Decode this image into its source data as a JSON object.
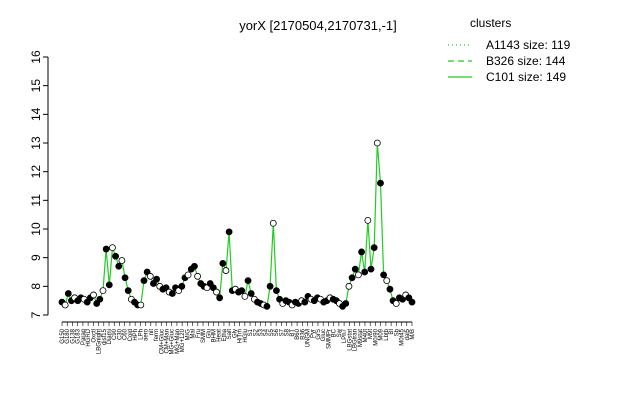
{
  "chart_data": {
    "type": "line",
    "title": "yorX [2170504,2170731,-1]",
    "xlabel": "",
    "ylabel": "",
    "ylim": [
      7,
      16
    ],
    "yticks": [
      7,
      8,
      9,
      10,
      11,
      12,
      13,
      14,
      15,
      16
    ],
    "grid": false,
    "legend": {
      "title": "clusters",
      "placement": "top-right",
      "color": "#22cc22",
      "entries": [
        {
          "label": "A1143 size: 119",
          "style": "dotted"
        },
        {
          "label": "B326 size: 144",
          "style": "dashed"
        },
        {
          "label": "C101 size: 149",
          "style": "solid"
        }
      ]
    },
    "x_tick_labels": [
      "G150",
      "G180",
      "G138",
      "G183",
      "Paraq",
      "HGRD",
      "Oxctl",
      "LBGnight",
      "dist15",
      "Diami",
      "C90",
      "C30",
      "C60",
      "Cold",
      "HPh",
      "LPh",
      "aero",
      "nit",
      "ferm",
      "CM+Gluc",
      "CM+Man",
      "MG+Gluc",
      "MG+Man",
      "MG+120",
      "M/G",
      "Mal",
      "Fru",
      "SMM",
      "Glu",
      "BHM",
      "Heat",
      "Etha",
      "Salt",
      "Gly",
      "HiTm",
      "HGlu",
      "S1",
      "S2",
      "S3",
      "S4",
      "S5",
      "S6",
      "S7",
      "S8",
      "BT",
      "B60",
      "B36",
      "UNGM",
      "Pyr",
      "GrS",
      "Gluc",
      "SMMPr",
      "BC",
      "Sw",
      "LPh7",
      "LBGstat",
      "LBGtran",
      "M9stat",
      "M40t",
      "M9t",
      "M0/90",
      "M09",
      "Lbtb",
      "BI",
      "Sb",
      "M0t45",
      "dal5",
      "M/B"
    ],
    "series": [
      {
        "name": "",
        "points": [
          {
            "x": 1,
            "y": 7.45
          },
          {
            "x": 2,
            "y": 7.35
          },
          {
            "x": 3,
            "y": 7.75
          },
          {
            "x": 4,
            "y": 7.5
          },
          {
            "x": 5,
            "y": 7.6
          },
          {
            "x": 6,
            "y": 7.5
          },
          {
            "x": 7,
            "y": 7.6
          },
          {
            "x": 8,
            "y": 7.55
          },
          {
            "x": 9,
            "y": 7.45
          },
          {
            "x": 10,
            "y": 7.6
          },
          {
            "x": 11,
            "y": 7.7
          },
          {
            "x": 12,
            "y": 7.4
          },
          {
            "x": 13,
            "y": 7.55
          },
          {
            "x": 14,
            "y": 7.85
          },
          {
            "x": 15,
            "y": 9.3
          },
          {
            "x": 16,
            "y": 8.05
          },
          {
            "x": 17,
            "y": 9.35
          },
          {
            "x": 18,
            "y": 9.05
          },
          {
            "x": 19,
            "y": 8.7
          },
          {
            "x": 20,
            "y": 8.9
          },
          {
            "x": 21,
            "y": 8.3
          },
          {
            "x": 22,
            "y": 7.85
          },
          {
            "x": 23,
            "y": 7.55
          },
          {
            "x": 24,
            "y": 7.45
          },
          {
            "x": 25,
            "y": 7.35
          },
          {
            "x": 26,
            "y": 7.35
          },
          {
            "x": 27,
            "y": 8.2
          },
          {
            "x": 28,
            "y": 8.5
          },
          {
            "x": 29,
            "y": 8.35
          },
          {
            "x": 30,
            "y": 8.1
          },
          {
            "x": 31,
            "y": 8.25
          },
          {
            "x": 32,
            "y": 8.0
          },
          {
            "x": 33,
            "y": 7.9
          },
          {
            "x": 34,
            "y": 7.95
          },
          {
            "x": 35,
            "y": 7.8
          },
          {
            "x": 36,
            "y": 7.75
          },
          {
            "x": 37,
            "y": 7.95
          },
          {
            "x": 38,
            "y": 7.85
          },
          {
            "x": 39,
            "y": 8.0
          },
          {
            "x": 40,
            "y": 8.3
          },
          {
            "x": 41,
            "y": 8.4
          },
          {
            "x": 42,
            "y": 8.6
          },
          {
            "x": 43,
            "y": 8.7
          },
          {
            "x": 44,
            "y": 8.35
          },
          {
            "x": 45,
            "y": 8.1
          },
          {
            "x": 46,
            "y": 8.0
          },
          {
            "x": 47,
            "y": 7.95
          },
          {
            "x": 48,
            "y": 8.1
          },
          {
            "x": 49,
            "y": 7.95
          },
          {
            "x": 50,
            "y": 7.8
          },
          {
            "x": 51,
            "y": 7.6
          },
          {
            "x": 52,
            "y": 8.8
          },
          {
            "x": 53,
            "y": 8.55
          },
          {
            "x": 54,
            "y": 9.9
          },
          {
            "x": 55,
            "y": 7.85
          },
          {
            "x": 56,
            "y": 7.9
          },
          {
            "x": 57,
            "y": 7.8
          },
          {
            "x": 58,
            "y": 7.85
          },
          {
            "x": 59,
            "y": 7.65
          },
          {
            "x": 60,
            "y": 8.2
          },
          {
            "x": 61,
            "y": 7.75
          },
          {
            "x": 62,
            "y": 7.55
          },
          {
            "x": 63,
            "y": 7.45
          },
          {
            "x": 64,
            "y": 7.4
          },
          {
            "x": 65,
            "y": 7.35
          },
          {
            "x": 66,
            "y": 7.3
          },
          {
            "x": 67,
            "y": 8.0
          },
          {
            "x": 68,
            "y": 10.2
          },
          {
            "x": 69,
            "y": 7.85
          },
          {
            "x": 70,
            "y": 7.55
          },
          {
            "x": 71,
            "y": 7.4
          },
          {
            "x": 72,
            "y": 7.5
          },
          {
            "x": 73,
            "y": 7.45
          },
          {
            "x": 74,
            "y": 7.35
          },
          {
            "x": 75,
            "y": 7.45
          },
          {
            "x": 76,
            "y": 7.4
          },
          {
            "x": 77,
            "y": 7.5
          },
          {
            "x": 78,
            "y": 7.45
          },
          {
            "x": 79,
            "y": 7.65
          },
          {
            "x": 80,
            "y": 7.55
          },
          {
            "x": 81,
            "y": 7.5
          },
          {
            "x": 82,
            "y": 7.6
          },
          {
            "x": 83,
            "y": 7.55
          },
          {
            "x": 84,
            "y": 7.45
          },
          {
            "x": 85,
            "y": 7.5
          },
          {
            "x": 86,
            "y": 7.6
          },
          {
            "x": 87,
            "y": 7.55
          },
          {
            "x": 88,
            "y": 7.5
          },
          {
            "x": 89,
            "y": 7.4
          },
          {
            "x": 90,
            "y": 7.3
          },
          {
            "x": 91,
            "y": 7.4
          },
          {
            "x": 92,
            "y": 8.0
          },
          {
            "x": 93,
            "y": 8.3
          },
          {
            "x": 94,
            "y": 8.6
          },
          {
            "x": 95,
            "y": 8.4
          },
          {
            "x": 96,
            "y": 9.2
          },
          {
            "x": 97,
            "y": 8.5
          },
          {
            "x": 98,
            "y": 10.3
          },
          {
            "x": 99,
            "y": 8.6
          },
          {
            "x": 100,
            "y": 9.35
          },
          {
            "x": 101,
            "y": 13.0
          },
          {
            "x": 102,
            "y": 11.6
          },
          {
            "x": 103,
            "y": 8.4
          },
          {
            "x": 104,
            "y": 8.2
          },
          {
            "x": 105,
            "y": 7.9
          },
          {
            "x": 106,
            "y": 7.5
          },
          {
            "x": 107,
            "y": 7.4
          },
          {
            "x": 108,
            "y": 7.6
          },
          {
            "x": 109,
            "y": 7.55
          },
          {
            "x": 110,
            "y": 7.7
          },
          {
            "x": 111,
            "y": 7.6
          },
          {
            "x": 112,
            "y": 7.45
          }
        ]
      }
    ]
  }
}
